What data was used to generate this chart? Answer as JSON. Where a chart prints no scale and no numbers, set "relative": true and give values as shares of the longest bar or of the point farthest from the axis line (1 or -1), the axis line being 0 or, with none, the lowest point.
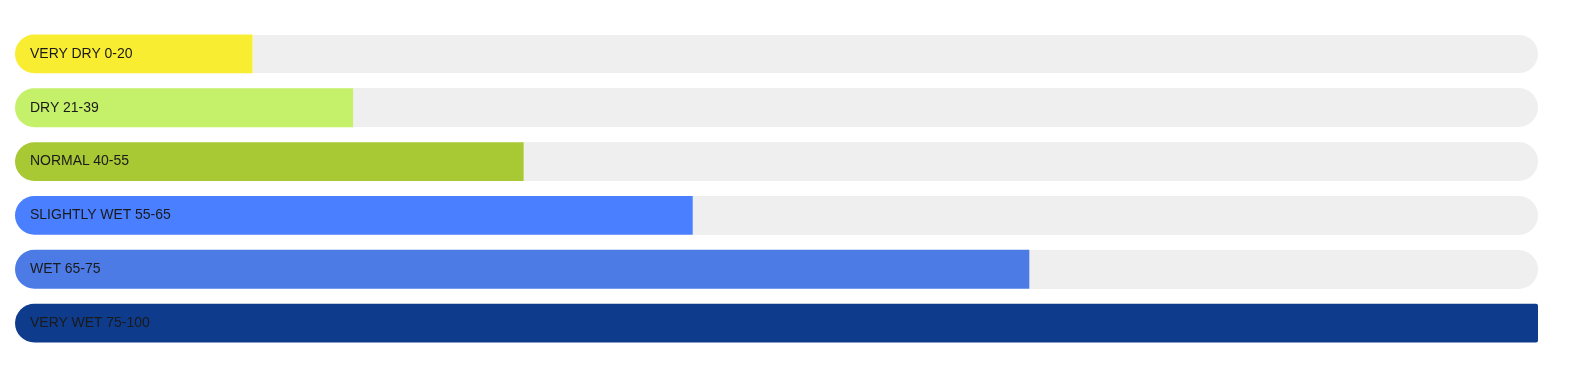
{
  "chart_data": {
    "type": "bar",
    "orientation": "horizontal",
    "relative": true,
    "categories": [
      "VERY DRY 0-20",
      "DRY 21-39",
      "NORMAL 40-55",
      "SLIGHTLY WET 55-65",
      "WET 65-75",
      "VERY WET 75-100"
    ],
    "values": [
      0.156,
      0.222,
      0.334,
      0.445,
      0.666,
      1
    ],
    "colors": [
      "#f9ed32",
      "#c5f06a",
      "#a8c834",
      "#4a7fff",
      "#4d7be6",
      "#0e3b8c"
    ]
  }
}
